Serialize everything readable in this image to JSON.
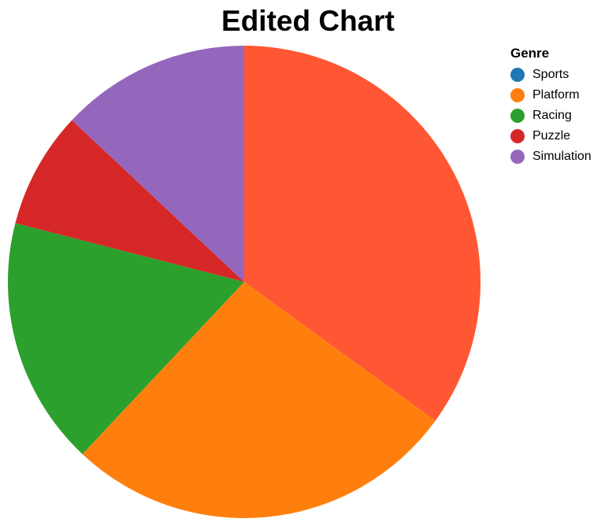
{
  "chart_data": {
    "type": "pie",
    "title": "Edited Chart",
    "legend_title": "Genre",
    "legend_position": "right",
    "categories": [
      "Sports",
      "Platform",
      "Racing",
      "Puzzle",
      "Simulation"
    ],
    "values": [
      35,
      27,
      17,
      8,
      13
    ],
    "colors": [
      "#ff5733",
      "#ff7f0e",
      "#2ca02c",
      "#d62728",
      "#9467bd"
    ],
    "legend_colors": [
      "#1f77b4",
      "#ff7f0e",
      "#2ca02c",
      "#d62728",
      "#9467bd"
    ]
  }
}
